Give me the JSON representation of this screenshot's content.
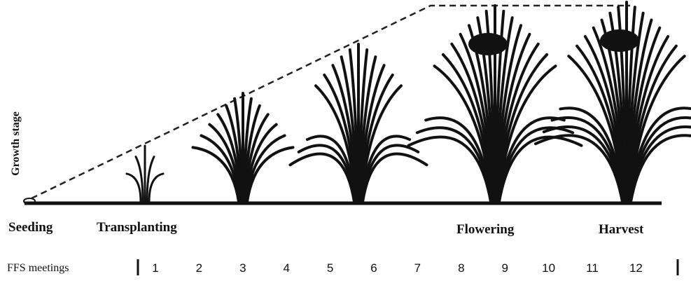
{
  "axis_label": "Growth stage",
  "stages": [
    "Seeding",
    "Transplanting",
    "Flowering",
    "Harvest"
  ],
  "meetings": {
    "label": "FFS meetings",
    "numbers": [
      1,
      2,
      3,
      4,
      5,
      6,
      7,
      8,
      9,
      10,
      11,
      12
    ]
  }
}
